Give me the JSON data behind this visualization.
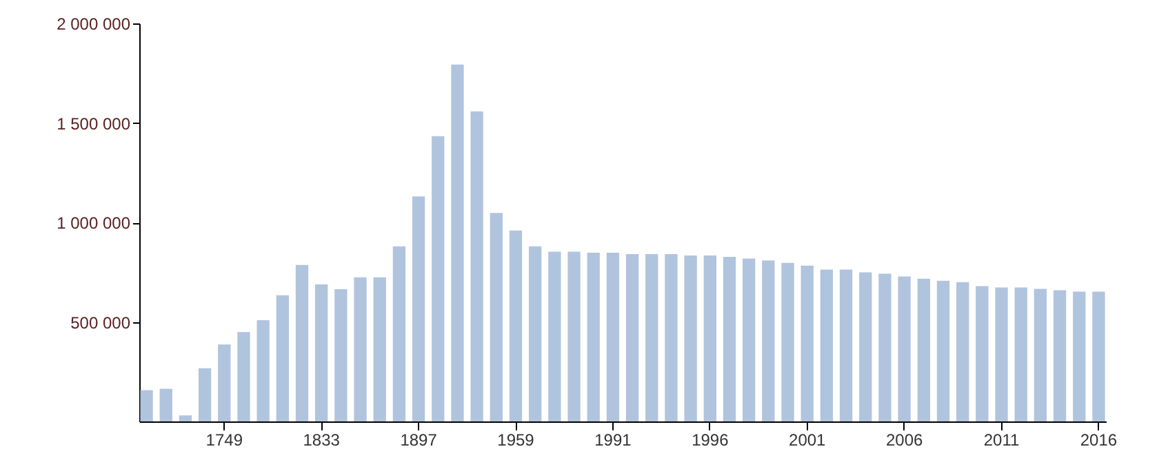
{
  "chart_data": {
    "type": "bar",
    "color": "#b0c4de",
    "categories": [
      null,
      null,
      null,
      null,
      "1749",
      null,
      null,
      null,
      null,
      "1833",
      null,
      null,
      null,
      null,
      "1897",
      null,
      null,
      null,
      null,
      "1959",
      null,
      null,
      null,
      null,
      "1991",
      null,
      null,
      null,
      null,
      "1996",
      null,
      null,
      null,
      null,
      "2001",
      null,
      null,
      null,
      null,
      "2006",
      null,
      null,
      null,
      null,
      "2011",
      null,
      null,
      null,
      null,
      "2016"
    ],
    "values": [
      157000,
      164000,
      30000,
      267000,
      387000,
      449000,
      509000,
      634000,
      786000,
      689000,
      664000,
      724000,
      724000,
      880000,
      1131000,
      1433000,
      1793000,
      1558000,
      1048000,
      959000,
      880000,
      853000,
      853000,
      848000,
      848000,
      841000,
      841000,
      841000,
      834000,
      834000,
      827000,
      818000,
      809000,
      797000,
      783000,
      763000,
      763000,
      749000,
      742000,
      728000,
      717000,
      707000,
      700000,
      680000,
      673000,
      673000,
      666000,
      659000,
      652000,
      652000
    ],
    "ylim": [
      0,
      2000000
    ],
    "yticks": [
      {
        "value": 500000,
        "label": "500 000"
      },
      {
        "value": 1000000,
        "label": "1 000 000"
      },
      {
        "value": 1500000,
        "label": "1 500 000"
      },
      {
        "value": 2000000,
        "label": "2 000 000"
      }
    ],
    "grid": false
  }
}
